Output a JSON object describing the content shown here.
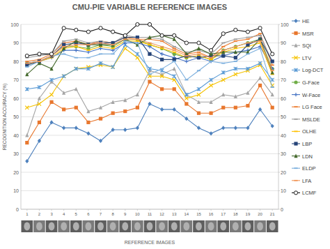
{
  "chart_data": {
    "type": "line",
    "title": "CMU-PIE  VARIABLE REFERENCE IMAGES",
    "x_label": "REFERENCE IMAGES",
    "y_label": "RECOGNITION ACCURACY (%)",
    "categories": [
      "1",
      "2",
      "3",
      "4",
      "5",
      "6",
      "7",
      "8",
      "9",
      "10",
      "11",
      "12",
      "13",
      "14",
      "15",
      "16",
      "17",
      "18",
      "19",
      "20",
      "21"
    ],
    "ylim": [
      0,
      100
    ],
    "yticks": [
      0,
      10,
      20,
      30,
      40,
      50,
      60,
      70,
      80,
      90,
      100
    ],
    "y2lim": [
      0,
      100
    ],
    "y2ticks": [
      0,
      10,
      20,
      30,
      40,
      50,
      60,
      70,
      80,
      90,
      100
    ],
    "grid": true,
    "legend": "right",
    "series": [
      {
        "name": "HE",
        "color": "#4e81bd",
        "marker": "diamond",
        "values": [
          26,
          37,
          47,
          44,
          44,
          41,
          37,
          43,
          43,
          44,
          57,
          54,
          54,
          49,
          44,
          41,
          44,
          44,
          44,
          54,
          45
        ]
      },
      {
        "name": "MSR",
        "color": "#e8772e",
        "marker": "square",
        "values": [
          36,
          47,
          58,
          54,
          55,
          47,
          49,
          52,
          53,
          55,
          69,
          65,
          65,
          57,
          52,
          52,
          55,
          55,
          56,
          67,
          55
        ]
      },
      {
        "name": "SQI",
        "color": "#a5a5a5",
        "marker": "triangle",
        "values": [
          40,
          60,
          69,
          63,
          65,
          53,
          55,
          58,
          59,
          62,
          75,
          73,
          76,
          62,
          58,
          58,
          62,
          61,
          63,
          71,
          62
        ]
      },
      {
        "name": "LTV",
        "color": "#f5c200",
        "marker": "x",
        "values": [
          55,
          57,
          62,
          72,
          76,
          77,
          78,
          77,
          87,
          82,
          72,
          72,
          70,
          60,
          62,
          67,
          70,
          73,
          75,
          78,
          67
        ]
      },
      {
        "name": "Log-DCT",
        "color": "#5b9bd5",
        "marker": "star",
        "values": [
          65,
          66,
          70,
          72,
          76,
          76,
          79,
          77,
          89,
          84,
          76,
          75,
          72,
          62,
          65,
          70,
          74,
          76,
          76,
          79,
          70
        ]
      },
      {
        "name": "G-Face",
        "color": "#70ad47",
        "marker": "circle",
        "values": [
          79,
          80,
          83,
          88,
          88,
          87,
          89,
          88,
          92,
          92,
          89,
          87,
          84,
          82,
          83,
          81,
          86,
          88,
          90,
          92,
          76
        ]
      },
      {
        "name": "W-Face",
        "color": "#4472c4",
        "marker": "plus",
        "values": [
          79,
          80,
          82,
          86,
          86,
          85,
          87,
          86,
          90,
          90,
          88,
          84,
          82,
          80,
          82,
          80,
          83,
          85,
          86,
          88,
          76
        ]
      },
      {
        "name": "LG Face",
        "color": "#ed7d31",
        "marker": "dash",
        "values": [
          80,
          81,
          84,
          90,
          91,
          89,
          91,
          90,
          93,
          92,
          92,
          91,
          87,
          84,
          85,
          82,
          88,
          91,
          92,
          95,
          78
        ]
      },
      {
        "name": "MSLDE",
        "color": "#9e9e9e",
        "marker": "dash",
        "values": [
          82,
          83,
          84,
          91,
          92,
          90,
          91,
          90,
          94,
          93,
          93,
          92,
          88,
          85,
          86,
          84,
          90,
          92,
          93,
          94,
          80
        ]
      },
      {
        "name": "OLHE",
        "color": "#ffc000",
        "marker": "dash",
        "values": [
          78,
          80,
          82,
          87,
          88,
          86,
          88,
          87,
          91,
          91,
          89,
          87,
          85,
          82,
          83,
          81,
          85,
          87,
          88,
          90,
          73
        ]
      },
      {
        "name": "LBP",
        "color": "#264478",
        "marker": "square",
        "values": [
          78,
          80,
          83,
          89,
          90,
          89,
          90,
          90,
          93,
          93,
          84,
          81,
          81,
          83,
          82,
          83,
          83,
          82,
          89,
          92,
          80
        ]
      },
      {
        "name": "LDN",
        "color": "#43682b",
        "marker": "triangle",
        "values": [
          73,
          79,
          76,
          87,
          91,
          89,
          89,
          89,
          92,
          89,
          93,
          94,
          92,
          84,
          87,
          84,
          85,
          85,
          85,
          92,
          74
        ]
      },
      {
        "name": "ELDP",
        "color": "#7cafdd",
        "marker": "dash",
        "values": [
          77,
          80,
          83,
          84,
          82,
          82,
          84,
          84,
          91,
          90,
          73,
          76,
          80,
          70,
          75,
          80,
          79,
          80,
          84,
          87,
          66
        ]
      },
      {
        "name": "LFA",
        "color": "#f1975a",
        "marker": "dash",
        "values": [
          79,
          80,
          83,
          88,
          89,
          89,
          90,
          89,
          92,
          92,
          90,
          88,
          86,
          83,
          84,
          82,
          86,
          88,
          90,
          91,
          75
        ]
      },
      {
        "name": "LCMF",
        "color": "#1a1a1a",
        "marker": "open-circle",
        "values": [
          83,
          84,
          84,
          98,
          97,
          96,
          98,
          96,
          94,
          100,
          100,
          94,
          94,
          90,
          90,
          86,
          95,
          97,
          96,
          98,
          84
        ]
      }
    ]
  }
}
